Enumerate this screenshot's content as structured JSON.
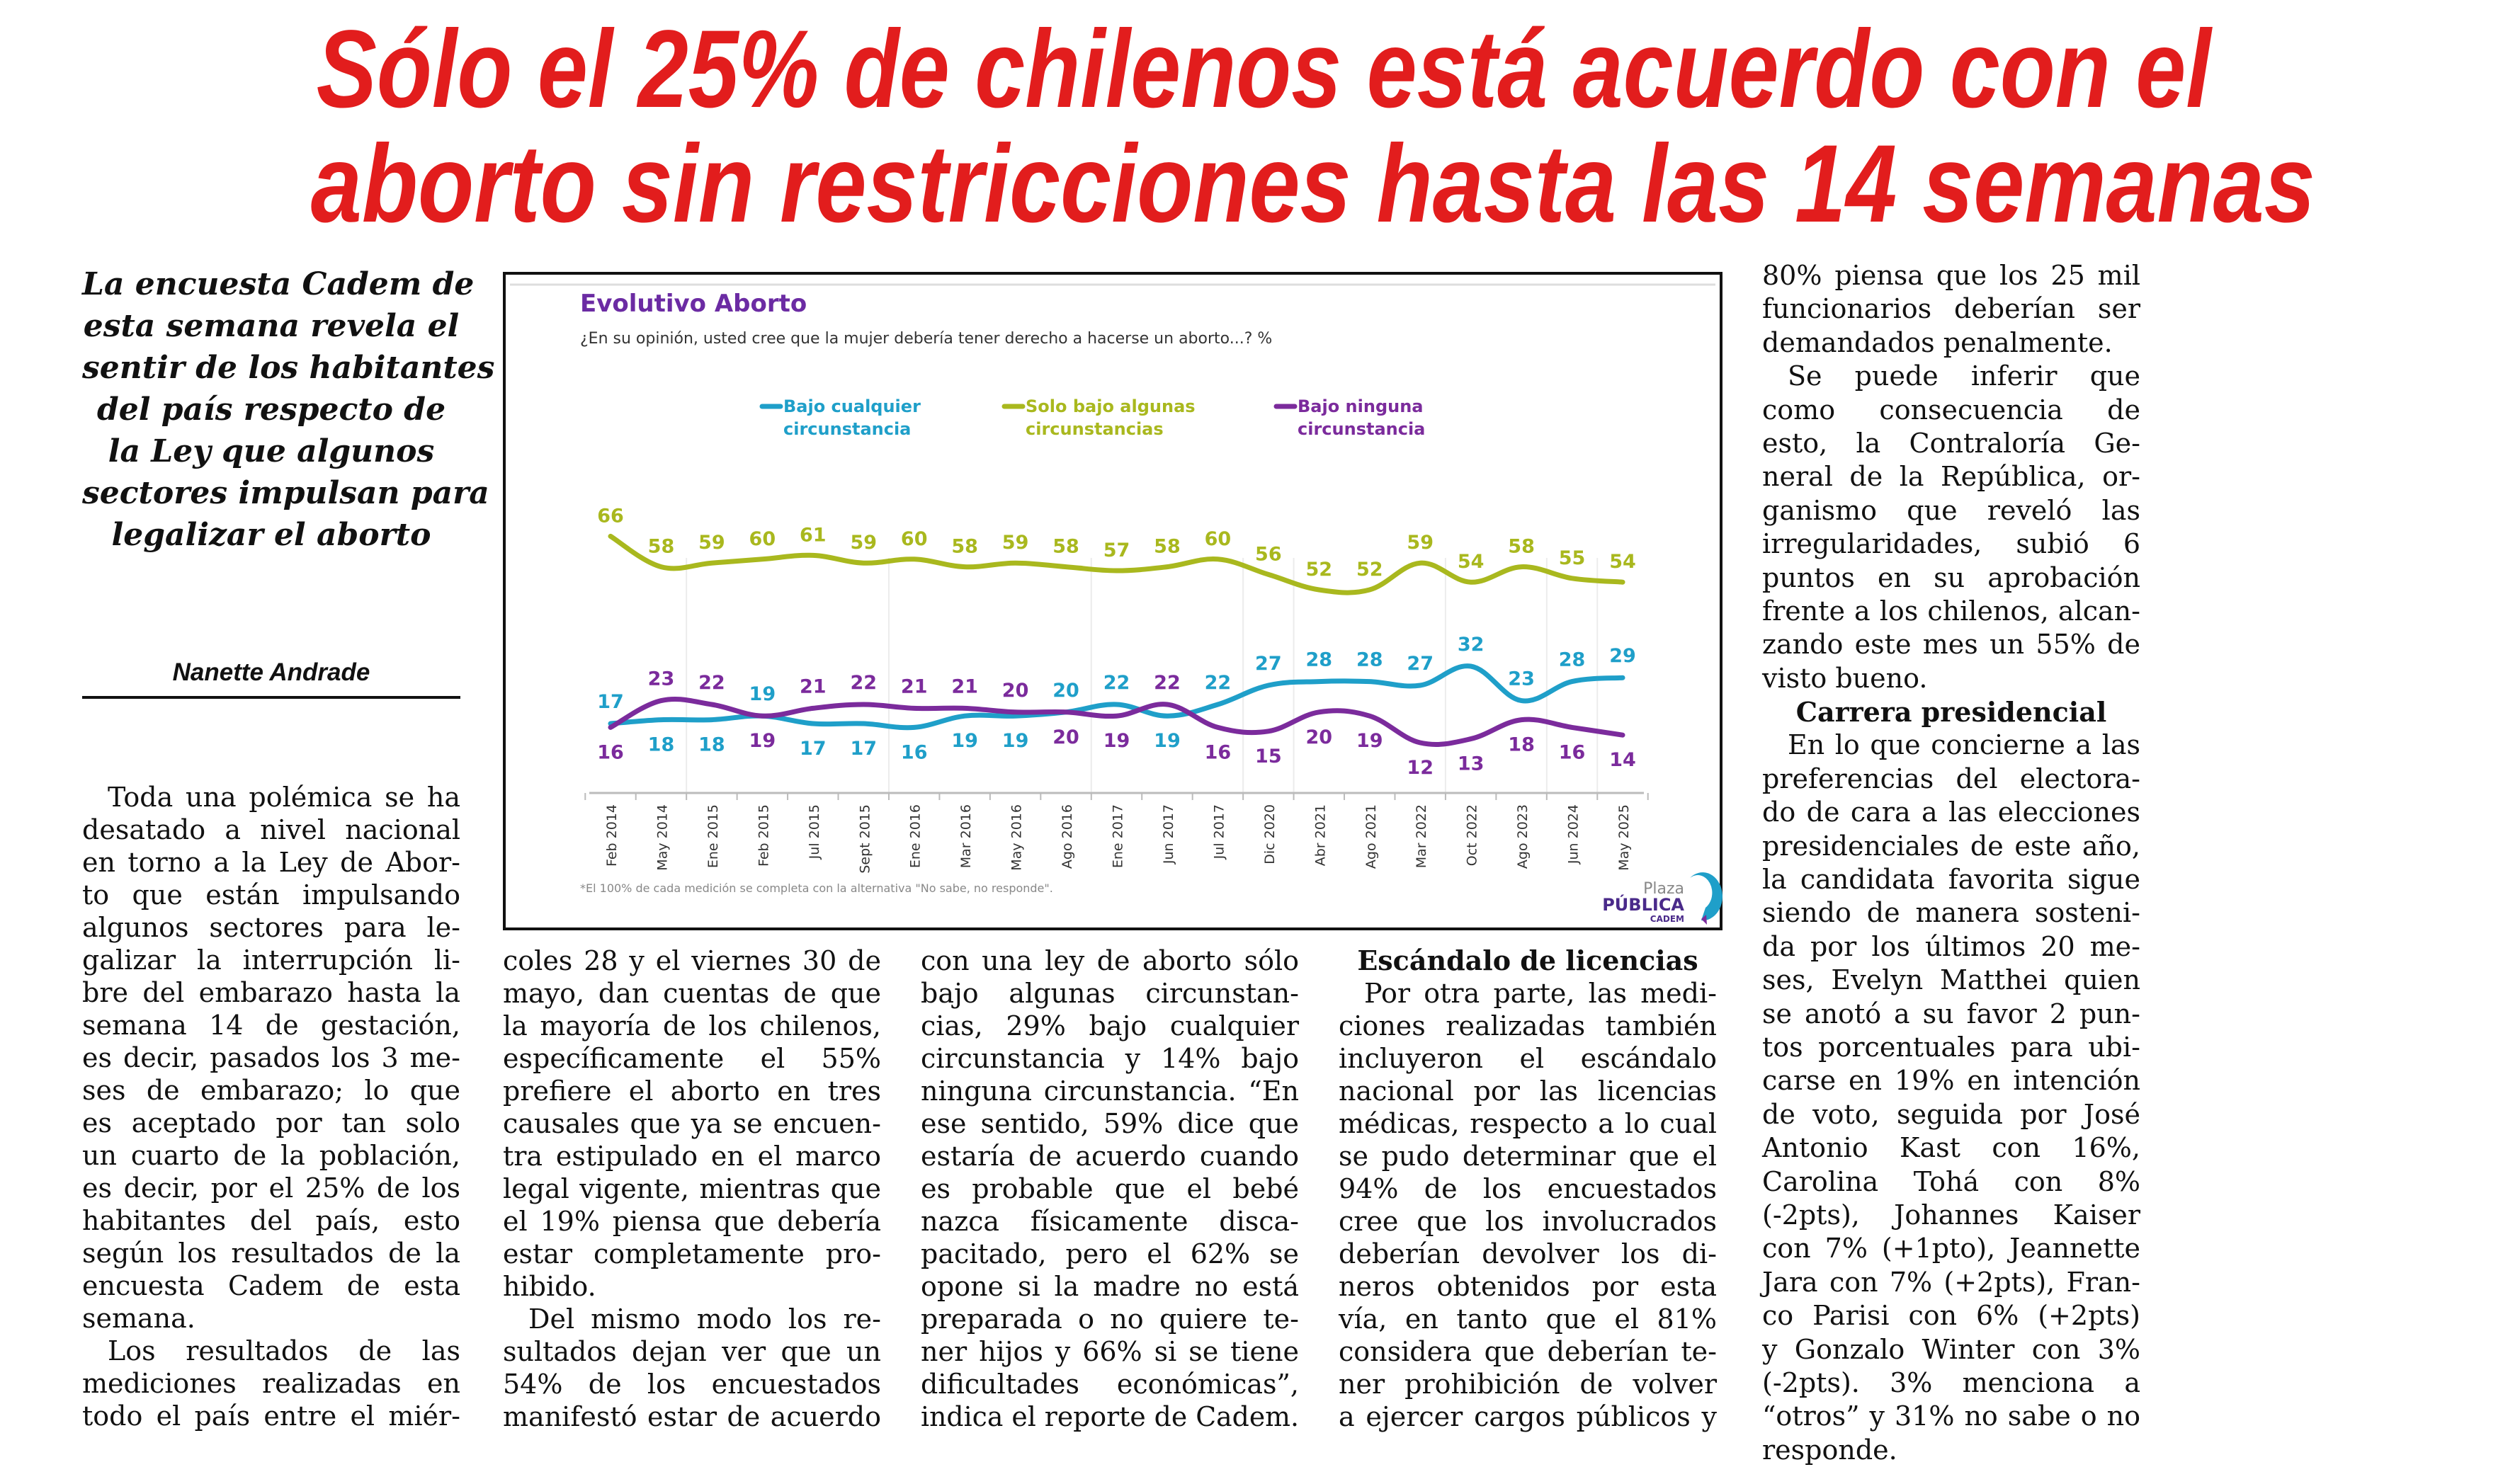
{
  "headline": {
    "line1": "Sólo el 25% de chilenos está acuerdo con el",
    "line2": "aborto sin restricciones hasta las 14 semanas"
  },
  "deck": [
    "La encuesta Cadem de",
    "esta semana revela el",
    "sentir de los habitantes",
    "del país respecto de",
    "la Ley que algunos",
    "sectores impulsan para",
    "legalizar el aborto"
  ],
  "byline": "Nanette Andrade",
  "article": {
    "columns": [
      {
        "blocks": [
          {
            "type": "p",
            "lines": [
              "Toda una polémica se ha",
              "desatado a nivel nacional",
              "en torno a la Ley de Abor-",
              "to que están impulsando",
              "algunos sectores para le-",
              "galizar la interrupción li-",
              "bre del embarazo hasta la",
              "semana 14 de gestación,",
              "es decir, pasados los 3 me-",
              "ses de embarazo; lo que",
              "es aceptado por tan solo",
              "un cuarto de la población,",
              "es decir, por el 25% de los",
              "habitantes del país, esto",
              "según los resultados de la",
              "encuesta Cadem de esta",
              "semana."
            ]
          },
          {
            "type": "p",
            "cont": true,
            "lines": [
              "Los resultados de las",
              "mediciones realizadas en",
              "todo el país entre el miér-"
            ]
          }
        ]
      },
      {
        "blocks": [
          {
            "type": "p",
            "noindent": true,
            "lines": [
              "coles 28 y el viernes 30 de",
              "mayo, dan cuentas de que",
              "la mayoría de los chilenos,",
              "específicamente el 55%",
              "prefiere el aborto en tres",
              "causales que ya se encuen-",
              "tra estipulado en el marco",
              "legal vigente, mientras que",
              "el 19% piensa que debería",
              "estar completamente pro-",
              "hibido."
            ]
          },
          {
            "type": "p",
            "cont": true,
            "lines": [
              "Del mismo modo los re-",
              "sultados dejan ver que un",
              "54% de los encuestados",
              "manifestó estar de acuerdo"
            ]
          }
        ]
      },
      {
        "blocks": [
          {
            "type": "p",
            "noindent": true,
            "cont": true,
            "lines": [
              "con una ley de aborto sólo",
              "bajo algunas circunstan-",
              "cias, 29% bajo cualquier",
              "circunstancia y 14% bajo",
              "ninguna circunstancia. “En",
              "ese sentido, 59% dice que",
              "estaría de acuerdo cuando",
              "es probable que el bebé",
              "nazca físicamente disca-",
              "pacitado, pero el 62% se",
              "opone si la madre no está",
              "preparada o no quiere te-",
              "ner hijos y 66% si se tiene",
              "dificultades económicas”,",
              "indica el reporte de Cadem."
            ]
          }
        ]
      },
      {
        "blocks": [
          {
            "type": "h",
            "text": "Escándalo de licencias"
          },
          {
            "type": "p",
            "cont": true,
            "lines": [
              "Por otra parte, las medi-",
              "ciones realizadas también",
              "incluyeron el escándalo",
              "nacional por las licencias",
              "médicas, respecto a lo cual",
              "se pudo determinar que el",
              "94% de los encuestados",
              "cree que los involucrados",
              "deberían devolver los di-",
              "neros obtenidos por esta",
              "vía, en tanto que el 81%",
              "considera que deberían te-",
              "ner prohibición de volver",
              "a ejercer cargos públicos y"
            ]
          }
        ]
      },
      {
        "blocks": [
          {
            "type": "p",
            "noindent": true,
            "lines": [
              "80% piensa que los 25 mil",
              "funcionarios deberían ser",
              "demandados penalmente."
            ]
          },
          {
            "type": "p",
            "lines": [
              "Se puede inferir que",
              "como consecuencia de",
              "esto, la Contraloría Ge-",
              "neral de la República, or-",
              "ganismo que reveló las",
              "irregularidades, subió 6",
              "puntos en su aprobación",
              "frente a los chilenos, alcan-",
              "zando este mes un 55% de",
              "visto bueno."
            ]
          },
          {
            "type": "h",
            "text": "Carrera presidencial"
          },
          {
            "type": "p",
            "lines": [
              "En lo que concierne a las",
              "preferencias del electora-",
              "do de cara a las elecciones",
              "presidenciales de este año,",
              "la candidata favorita sigue",
              "siendo de manera sosteni-",
              "da por los últimos 20 me-",
              "ses, Evelyn Matthei quien",
              "se anotó a su favor 2 pun-",
              "tos porcentuales para ubi-",
              "carse en 19% en intención",
              "de voto, seguida por José",
              "Antonio Kast con 16%,",
              "Carolina Tohá con 8%",
              "(-2pts), Johannes Kaiser",
              "con 7% (+1pto), Jeannette",
              "Jara con 7% (+2pts), Fran-",
              "co Parisi con 6% (+2pts)",
              "y Gonzalo Winter con 3%",
              "(-2pts). 3% menciona a",
              "“otros” y 31% no sabe o no",
              "responde."
            ]
          }
        ]
      }
    ]
  },
  "chart_data": {
    "type": "line",
    "title": "Evolutivo Aborto",
    "subtitle": "¿En su opinión, usted cree que la mujer debería tener derecho a hacerse un aborto...? %",
    "categories": [
      "Feb 2014",
      "May 2014",
      "Ene 2015",
      "Feb 2015",
      "Jul 2015",
      "Sept 2015",
      "Ene 2016",
      "Mar 2016",
      "May 2016",
      "Ago 2016",
      "Ene 2017",
      "Jun 2017",
      "Jul 2017",
      "Dic 2020",
      "Abr 2021",
      "Ago 2021",
      "Mar 2022",
      "Oct 2022",
      "Ago 2023",
      "Jun 2024",
      "May 2025"
    ],
    "series": [
      {
        "name": "Bajo cualquier circunstancia",
        "name_lines": [
          "Bajo cualquier",
          "circunstancia"
        ],
        "color": "#1f9fc9",
        "values": [
          17,
          18,
          18,
          19,
          17,
          17,
          16,
          19,
          19,
          20,
          22,
          19,
          22,
          27,
          28,
          28,
          27,
          32,
          23,
          28,
          29
        ]
      },
      {
        "name": "Solo bajo algunas circunstancias",
        "name_lines": [
          "Solo bajo algunas",
          "circunstancias"
        ],
        "color": "#a9b81e",
        "values": [
          66,
          58,
          59,
          60,
          61,
          59,
          60,
          58,
          59,
          58,
          57,
          58,
          60,
          56,
          52,
          52,
          59,
          54,
          58,
          55,
          54
        ]
      },
      {
        "name": "Bajo ninguna circunstancia",
        "name_lines": [
          "Bajo ninguna",
          "circunstancia"
        ],
        "color": "#7b2b9c",
        "values": [
          16,
          23,
          22,
          19,
          21,
          22,
          21,
          21,
          20,
          20,
          19,
          22,
          16,
          15,
          20,
          19,
          12,
          13,
          18,
          16,
          14
        ]
      }
    ],
    "legend": "top",
    "data_labels": true,
    "footnote": "*El 100% de cada medición se completa con la alternativa \"No sabe, no responde\".",
    "title_color": "#6b2ba3"
  },
  "logo": {
    "line1": "Plaza",
    "line2": "PÚBLICA",
    "line3": "CADEM"
  },
  "colors": {
    "headline": "#e21d1d"
  }
}
